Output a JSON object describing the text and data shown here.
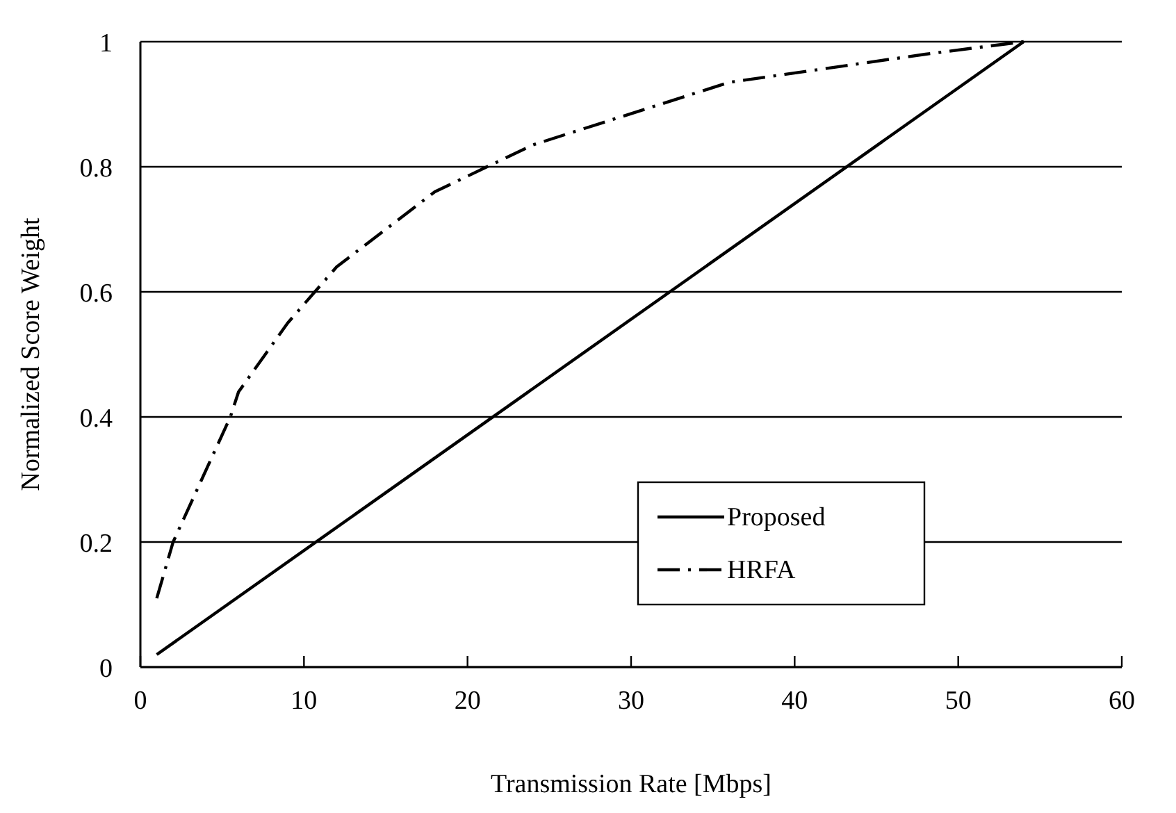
{
  "chart_data": {
    "type": "line",
    "xlabel": "Transmission Rate [Mbps]",
    "ylabel": "Normalized Score Weight",
    "xlim": [
      0,
      60
    ],
    "xticks": [
      0,
      10,
      20,
      30,
      40,
      50,
      60
    ],
    "ylim": [
      0,
      1
    ],
    "yticks": [
      0,
      0.2,
      0.4,
      0.6,
      0.8,
      1
    ],
    "grid": "y",
    "legend": "bottom right",
    "marker": "none",
    "series": [
      {
        "name": "Proposed",
        "color": "#000000",
        "line_style": "solid",
        "x": [
          1,
          54
        ],
        "values": [
          0.02,
          1
        ]
      },
      {
        "name": "HRFA",
        "color": "#000000",
        "line_style": "dashdot",
        "x": [
          1,
          2,
          5.5,
          6,
          9,
          11,
          12,
          18,
          24,
          36,
          48,
          54
        ],
        "values": [
          0.11,
          0.2,
          0.4,
          0.44,
          0.55,
          0.61,
          0.64,
          0.76,
          0.835,
          0.935,
          0.98,
          1
        ]
      }
    ]
  }
}
